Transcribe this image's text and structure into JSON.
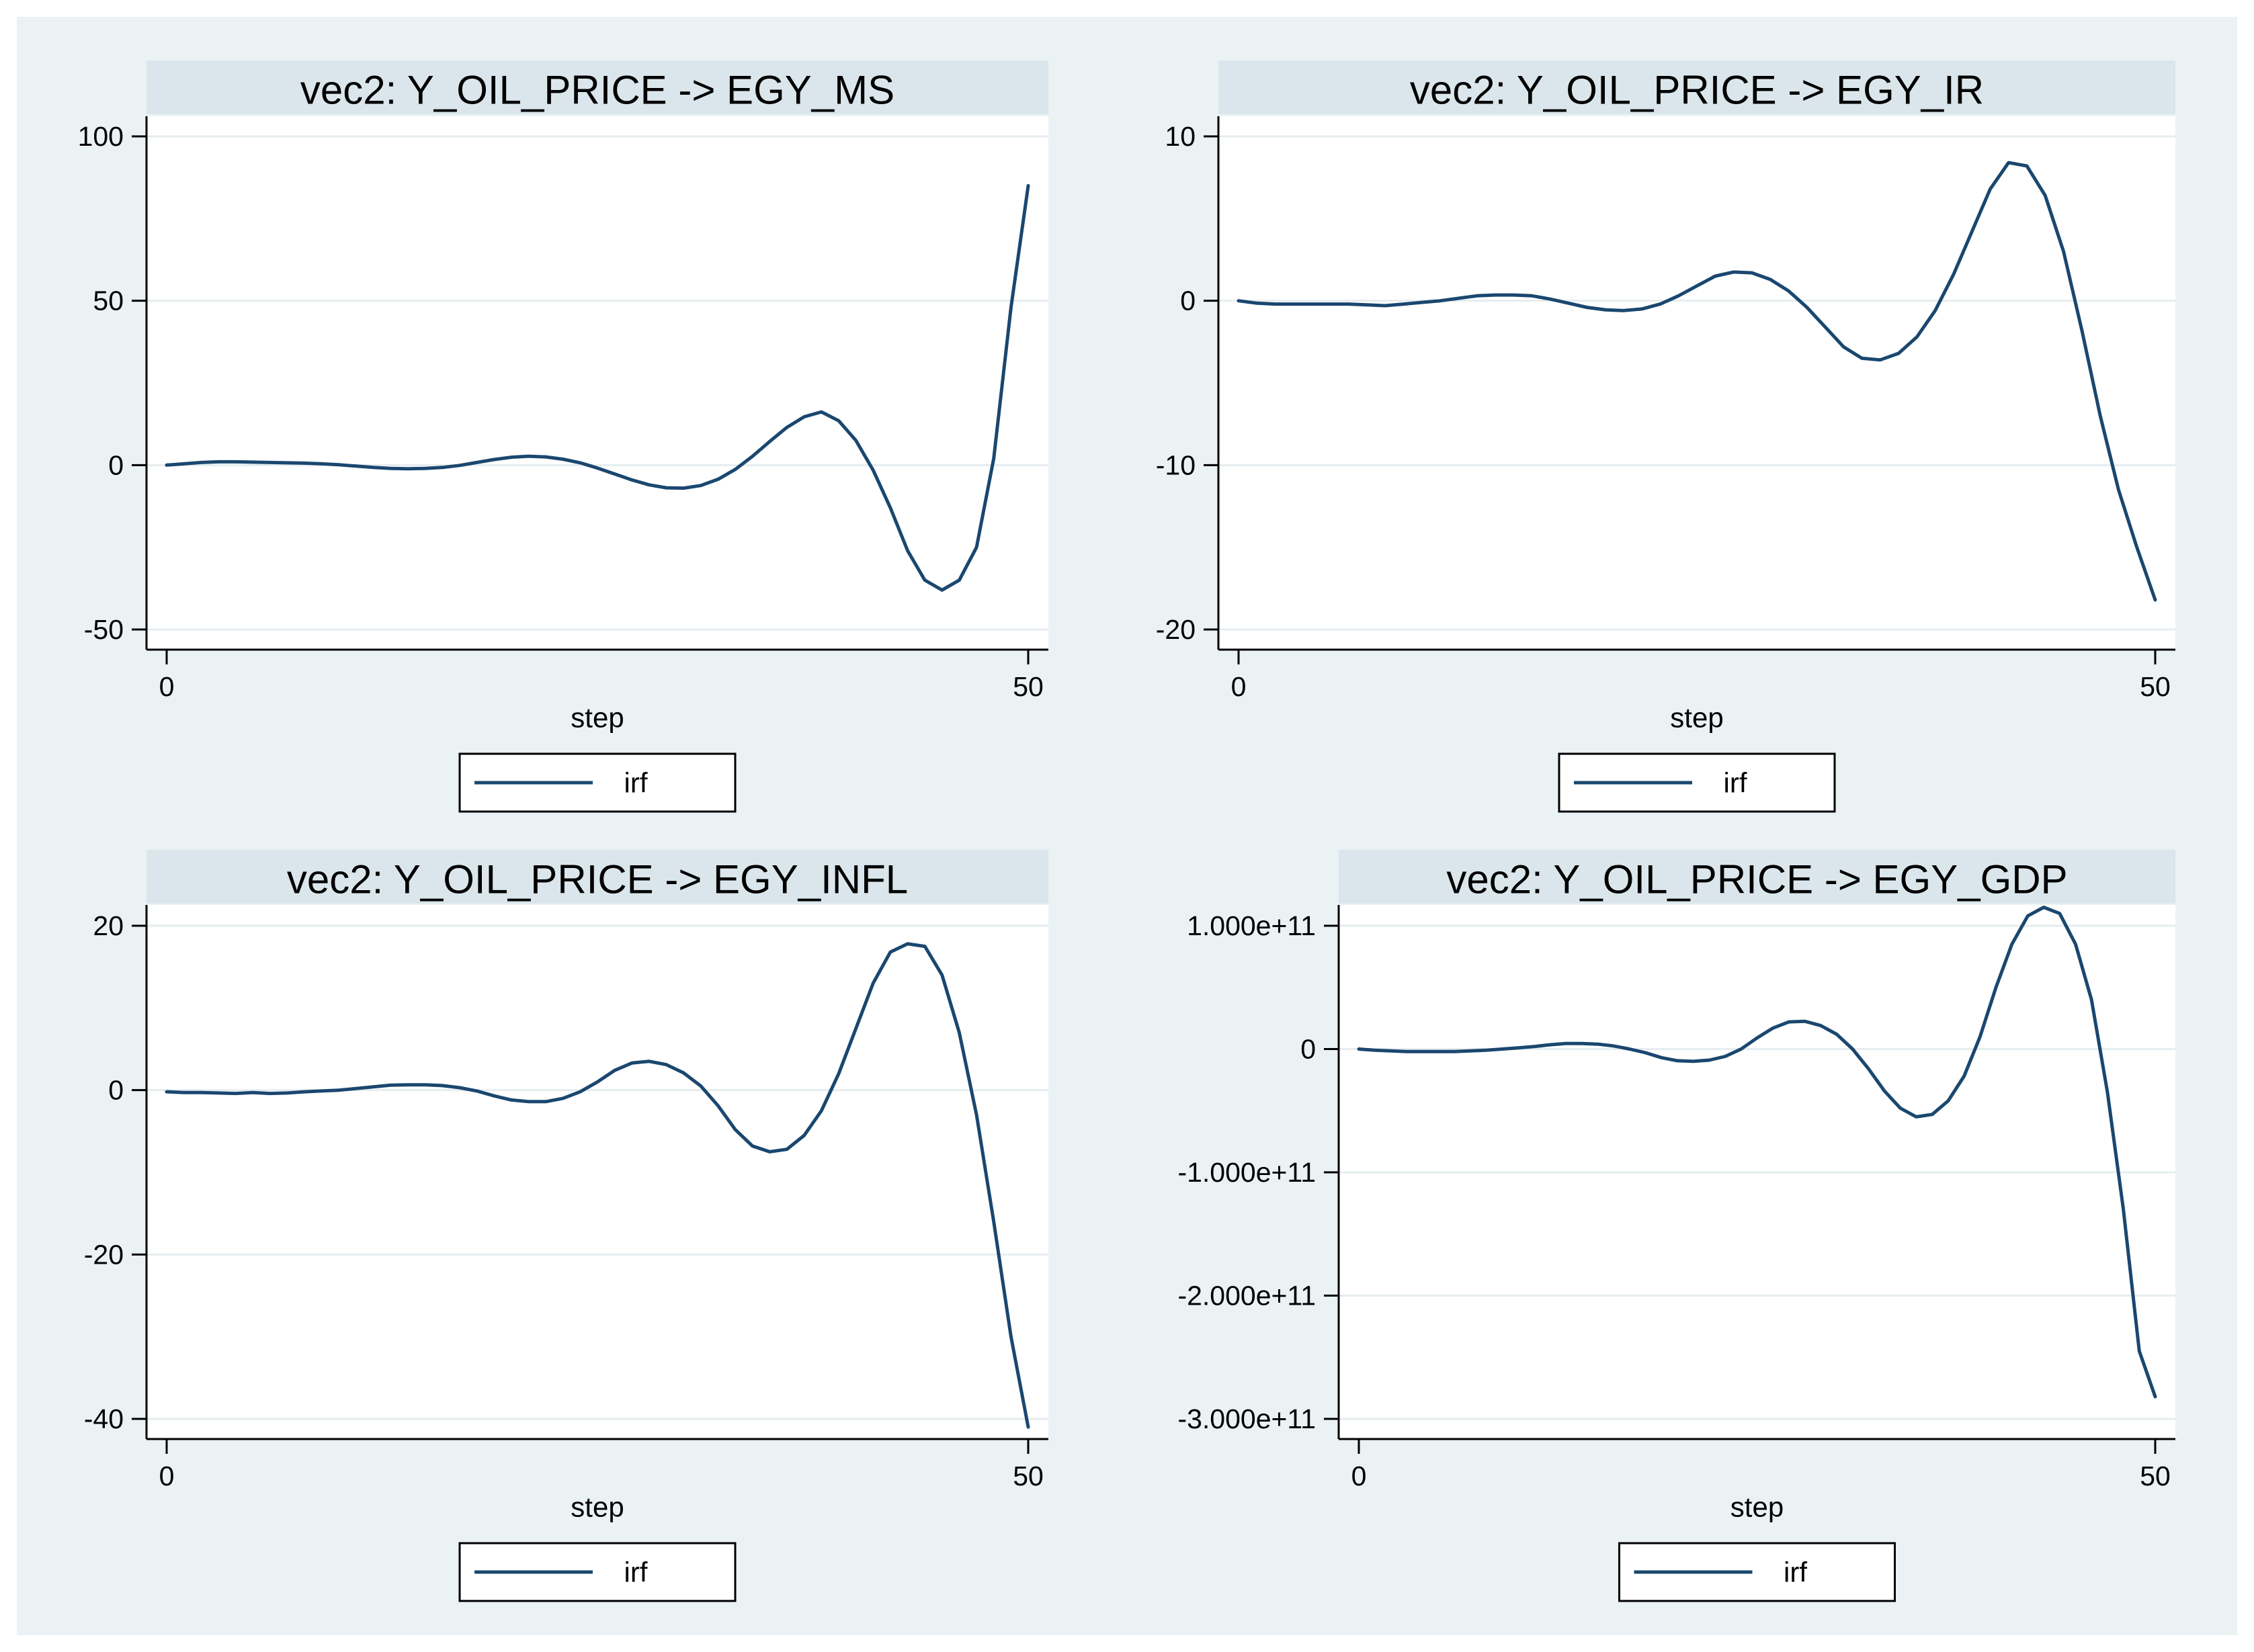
{
  "colors": {
    "outer_background": "#ffffff",
    "graph_background": "#eaf2f3",
    "title_band": "#dae6eb",
    "plot_background": "#ffffff",
    "gridline": "#e6edf0",
    "axis": "#000000",
    "text": "#000000",
    "irf_line": "#1a476f",
    "legend_background": "#ffffff",
    "legend_border": "#000000"
  },
  "chart_data": {
    "type": "line",
    "layout": "2x2-grid",
    "model": "vec2",
    "impulse": "Y_OIL_PRICE",
    "xlabel": "step",
    "x_range": [
      0,
      50
    ],
    "x_tick_values": [
      0,
      50
    ],
    "x_tick_labels": [
      "0",
      "50"
    ],
    "grid": true,
    "legend": {
      "label": "irf",
      "position": "bottom-center"
    },
    "panels": [
      {
        "title": "vec2: Y_OIL_PRICE -> EGY_MS",
        "response": "EGY_MS",
        "y_ticks": [
          {
            "value": 100,
            "label": "100"
          },
          {
            "value": 50,
            "label": "50"
          },
          {
            "value": 0,
            "label": "0"
          },
          {
            "value": -50,
            "label": "-50"
          }
        ],
        "series": {
          "name": "irf",
          "values": [
            0,
            0.4,
            0.8,
            1.0,
            1.0,
            0.9,
            0.8,
            0.7,
            0.6,
            0.4,
            0.1,
            -0.3,
            -0.7,
            -1.0,
            -1.1,
            -1.0,
            -0.7,
            -0.1,
            0.8,
            1.7,
            2.4,
            2.7,
            2.5,
            1.8,
            0.7,
            -0.9,
            -2.7,
            -4.5,
            -6.0,
            -6.9,
            -7.0,
            -6.2,
            -4.3,
            -1.3,
            2.7,
            7.2,
            11.5,
            14.7,
            16.2,
            13.5,
            7.5,
            -1.5,
            -13,
            -26,
            -35,
            -38,
            -35,
            -25,
            2,
            48,
            85
          ]
        }
      },
      {
        "title": "vec2: Y_OIL_PRICE -> EGY_IR",
        "response": "EGY_IR",
        "y_ticks": [
          {
            "value": 10,
            "label": "10"
          },
          {
            "value": 0,
            "label": "0"
          },
          {
            "value": -10,
            "label": "-10"
          },
          {
            "value": -20,
            "label": "-20"
          }
        ],
        "series": {
          "name": "irf",
          "values": [
            0,
            -0.15,
            -0.2,
            -0.2,
            -0.2,
            -0.2,
            -0.2,
            -0.25,
            -0.3,
            -0.2,
            -0.1,
            0,
            0.15,
            0.3,
            0.35,
            0.35,
            0.3,
            0.1,
            -0.15,
            -0.4,
            -0.55,
            -0.6,
            -0.5,
            -0.2,
            0.3,
            0.9,
            1.5,
            1.75,
            1.7,
            1.3,
            0.6,
            -0.4,
            -1.6,
            -2.8,
            -3.5,
            -3.6,
            -3.2,
            -2.2,
            -0.6,
            1.6,
            4.2,
            6.8,
            8.4,
            8.2,
            6.4,
            3.0,
            -1.8,
            -7.0,
            -11.5,
            -15.0,
            -18.2
          ]
        }
      },
      {
        "title": "vec2: Y_OIL_PRICE -> EGY_INFL",
        "response": "EGY_INFL",
        "y_ticks": [
          {
            "value": 20,
            "label": "20"
          },
          {
            "value": 0,
            "label": "0"
          },
          {
            "value": -20,
            "label": "-20"
          },
          {
            "value": -40,
            "label": "-40"
          }
        ],
        "series": {
          "name": "irf",
          "values": [
            -0.2,
            -0.3,
            -0.3,
            -0.35,
            -0.4,
            -0.3,
            -0.4,
            -0.35,
            -0.2,
            -0.1,
            0,
            0.2,
            0.4,
            0.6,
            0.65,
            0.65,
            0.55,
            0.3,
            -0.1,
            -0.7,
            -1.2,
            -1.4,
            -1.4,
            -1.0,
            -0.2,
            1.0,
            2.4,
            3.3,
            3.5,
            3.1,
            2.1,
            0.5,
            -1.9,
            -4.8,
            -6.8,
            -7.5,
            -7.2,
            -5.5,
            -2.5,
            2.0,
            7.5,
            13.0,
            16.8,
            17.8,
            17.5,
            14.0,
            7.0,
            -3.0,
            -16.0,
            -30.0,
            -41.0
          ]
        }
      },
      {
        "title": "vec2: Y_OIL_PRICE -> EGY_GDP",
        "response": "EGY_GDP",
        "y_unit": "1e+11",
        "y_ticks": [
          {
            "value": 1,
            "label": "1.000e+11"
          },
          {
            "value": 0,
            "label": "0"
          },
          {
            "value": -1,
            "label": "-1.000e+11"
          },
          {
            "value": -2,
            "label": "-2.000e+11"
          },
          {
            "value": -3,
            "label": "-3.000e+11"
          }
        ],
        "series": {
          "name": "irf",
          "values": [
            0,
            -0.01,
            -0.015,
            -0.02,
            -0.02,
            -0.02,
            -0.02,
            -0.015,
            -0.01,
            0,
            0.01,
            0.02,
            0.035,
            0.045,
            0.045,
            0.04,
            0.025,
            0,
            -0.03,
            -0.07,
            -0.095,
            -0.1,
            -0.09,
            -0.06,
            0,
            0.09,
            0.17,
            0.22,
            0.225,
            0.19,
            0.12,
            0,
            -0.16,
            -0.34,
            -0.48,
            -0.55,
            -0.53,
            -0.42,
            -0.22,
            0.1,
            0.5,
            0.85,
            1.08,
            1.15,
            1.1,
            0.85,
            0.4,
            -0.35,
            -1.3,
            -2.45,
            -2.82
          ]
        }
      }
    ]
  }
}
